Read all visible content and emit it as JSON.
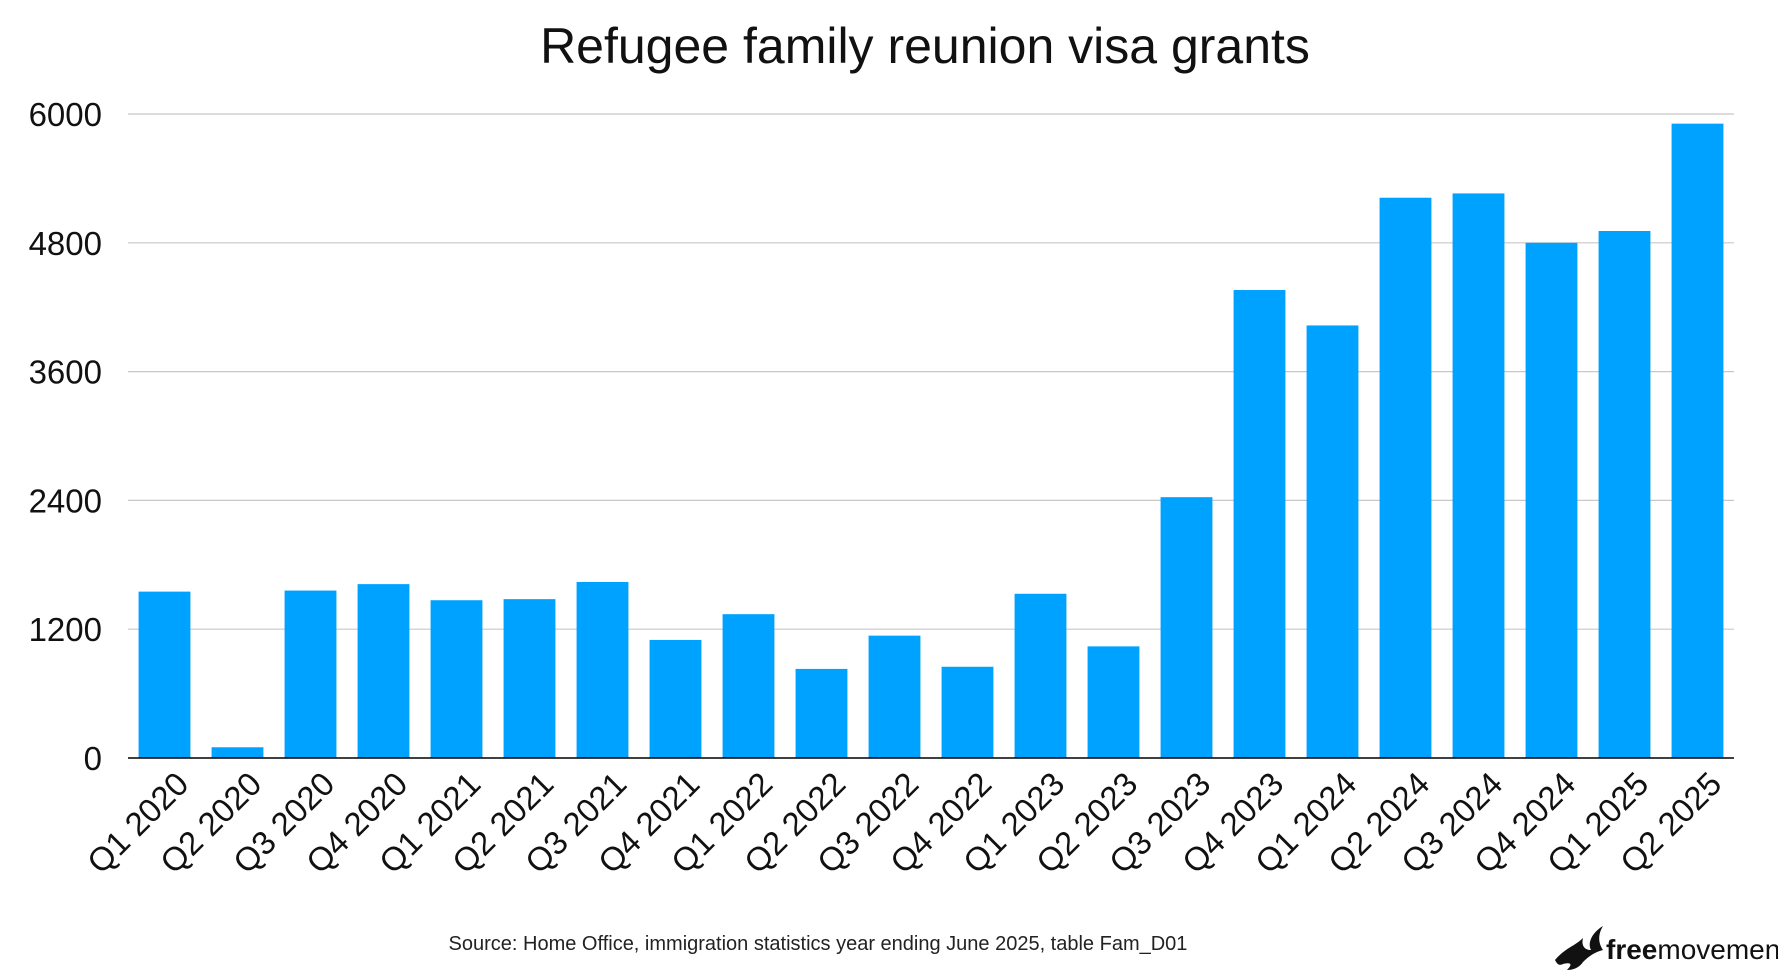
{
  "colors": {
    "bar": "#00A2FF",
    "grid": "#C8C8C8",
    "axis": "#000000",
    "text": "#111111"
  },
  "chart_data": {
    "type": "bar",
    "title": "Refugee family reunion visa grants",
    "xlabel": "",
    "ylabel": "",
    "ylim": [
      0,
      6000
    ],
    "yticks": [
      "0",
      "1200",
      "2400",
      "3600",
      "4800",
      "6000"
    ],
    "grid": true,
    "legend": "none",
    "categories": [
      "Q1 2020",
      "Q2 2020",
      "Q3 2020",
      "Q4 2020",
      "Q1 2021",
      "Q2 2021",
      "Q3 2021",
      "Q4 2021",
      "Q1 2022",
      "Q2 2022",
      "Q3 2022",
      "Q4 2022",
      "Q1 2023",
      "Q2 2023",
      "Q3 2023",
      "Q4 2023",
      "Q1 2024",
      "Q2 2024",
      "Q3 2024",
      "Q4 2024",
      "Q1 2025",
      "Q2 2025"
    ],
    "values": [
      1550,
      100,
      1560,
      1620,
      1470,
      1480,
      1640,
      1100,
      1340,
      830,
      1140,
      850,
      1530,
      1040,
      2430,
      4360,
      4030,
      5220,
      5260,
      4800,
      4910,
      5910
    ]
  },
  "source": "Source: Home Office, immigration statistics year ending June 2025, table Fam_D01",
  "logo": {
    "icon": "bird-icon",
    "text_bold": "free",
    "text_regular": "movement"
  }
}
